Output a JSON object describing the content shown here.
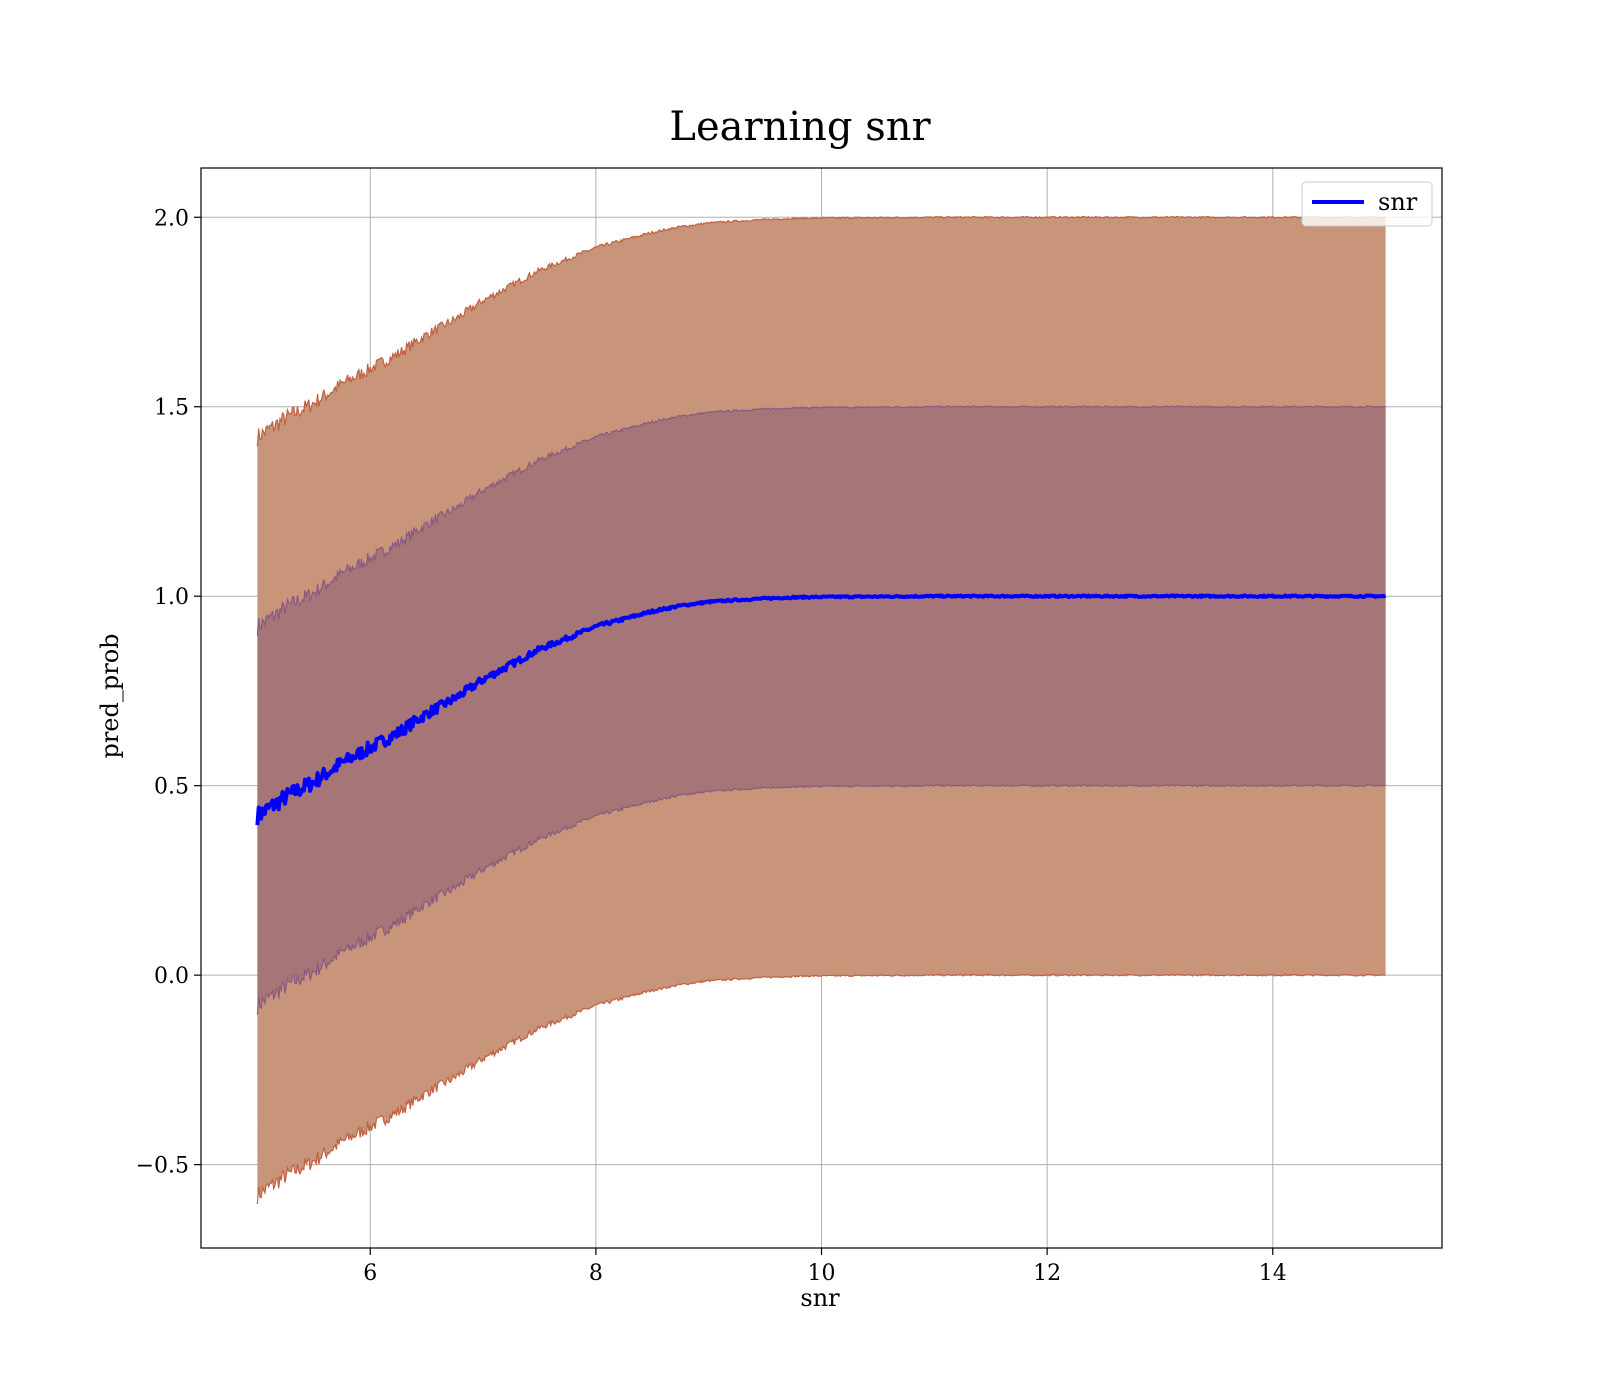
{
  "chart_data": {
    "type": "line",
    "title": "Learning snr",
    "xlabel": "snr",
    "ylabel": "pred_prob",
    "xlim": [
      4.5,
      15.5
    ],
    "ylim": [
      -0.72,
      2.13
    ],
    "xticks": [
      6,
      8,
      10,
      12,
      14
    ],
    "xtick_labels": [
      "6",
      "8",
      "10",
      "12",
      "14"
    ],
    "yticks": [
      -0.5,
      0.0,
      0.5,
      1.0,
      1.5,
      2.0
    ],
    "ytick_labels": [
      "−0.5",
      "0.0",
      "0.5",
      "1.0",
      "1.5",
      "2.0"
    ],
    "grid": true,
    "legend": {
      "position": "top-right",
      "entries": [
        "snr"
      ]
    },
    "series": [
      {
        "name": "snr",
        "color": "#0000ff",
        "x": [
          5.0,
          5.25,
          5.5,
          5.75,
          6.0,
          6.25,
          6.5,
          6.75,
          7.0,
          7.25,
          7.5,
          7.75,
          8.0,
          8.25,
          8.5,
          8.75,
          9.0,
          9.25,
          9.5,
          9.75,
          10.0,
          10.5,
          11.0,
          11.5,
          12.0,
          12.5,
          13.0,
          13.5,
          14.0,
          14.5,
          15.0
        ],
        "y": [
          0.42,
          0.47,
          0.51,
          0.56,
          0.6,
          0.64,
          0.69,
          0.73,
          0.78,
          0.82,
          0.86,
          0.89,
          0.92,
          0.94,
          0.96,
          0.975,
          0.985,
          0.99,
          0.994,
          0.997,
          0.998,
          0.999,
          1.0,
          1.0,
          1.0,
          1.0,
          1.0,
          1.0,
          1.0,
          1.0,
          1.0
        ]
      }
    ],
    "bands": [
      {
        "label_of": "outer band (mean ± 1.0)",
        "offset": 1.0,
        "color": "#c8957a",
        "edge_color": "#c0603f"
      },
      {
        "label_of": "inner band (mean ± 0.5)",
        "offset": 0.5,
        "color": "#a07078",
        "edge_color": "#8a5a80"
      }
    ],
    "colors": {
      "line": "#0000ff",
      "outer_band": "#c8957a",
      "inner_band": "#a07078",
      "grid": "#b0b0b0"
    }
  }
}
